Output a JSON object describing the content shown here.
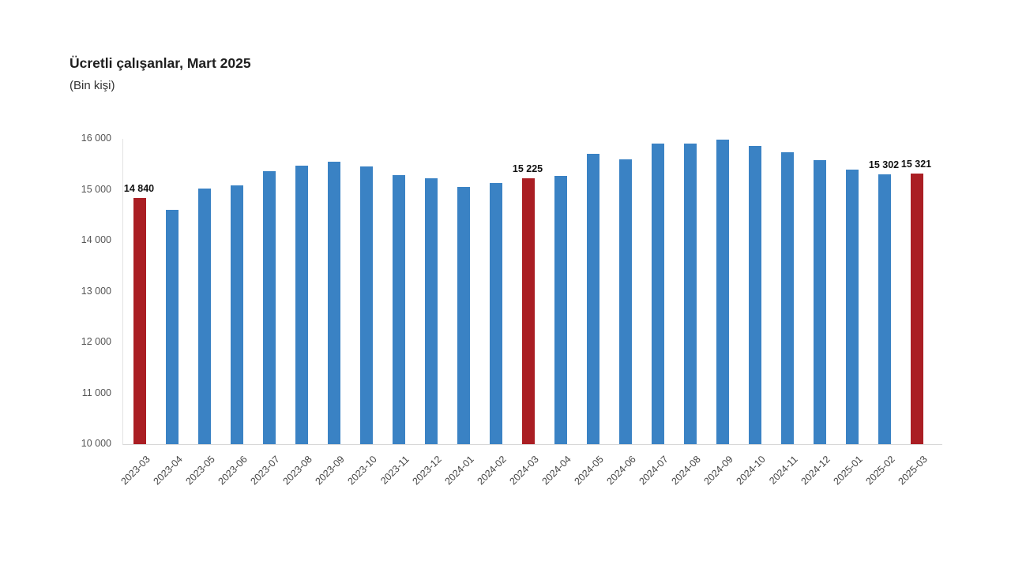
{
  "page": {
    "background": "#ffffff"
  },
  "chart_data": {
    "type": "bar",
    "title": "Ücretli çalışanlar, Mart 2025",
    "subtitle": "(Bin kişi)",
    "xlabel": "",
    "ylabel": "",
    "unit": "Bin kişi",
    "ylim": [
      10000,
      16000
    ],
    "ytick_interval": 1000,
    "ytick_labels": [
      "10 000",
      "11 000",
      "12 000",
      "13 000",
      "14 000",
      "15 000",
      "16 000"
    ],
    "grid": false,
    "legend": "none",
    "categories": [
      "2023-03",
      "2023-04",
      "2023-05",
      "2023-06",
      "2023-07",
      "2023-08",
      "2023-09",
      "2023-10",
      "2023-11",
      "2023-12",
      "2024-01",
      "2024-02",
      "2024-03",
      "2024-04",
      "2024-05",
      "2024-06",
      "2024-07",
      "2024-08",
      "2024-09",
      "2024-10",
      "2024-11",
      "2024-12",
      "2025-01",
      "2025-02",
      "2025-03"
    ],
    "values": [
      14840,
      14610,
      15020,
      15085,
      15365,
      15470,
      15550,
      15450,
      15290,
      15230,
      15055,
      15125,
      15225,
      15275,
      15700,
      15600,
      15910,
      15905,
      15985,
      15860,
      15730,
      15575,
      15395,
      15302,
      15321
    ],
    "highlight_indices": [
      0,
      12,
      24
    ],
    "value_labels": [
      {
        "index": 0,
        "text": "14 840"
      },
      {
        "index": 12,
        "text": "15 225"
      },
      {
        "index": 23,
        "text": "15 302"
      },
      {
        "index": 24,
        "text": "15 321"
      }
    ],
    "colors": {
      "bar": "#3a82c4",
      "highlight": "#aa1e23",
      "axis_line": "#dcdcdc",
      "tick_text": "#555555",
      "xlabel_text": "#444444",
      "value_label_text": "#111111"
    }
  }
}
